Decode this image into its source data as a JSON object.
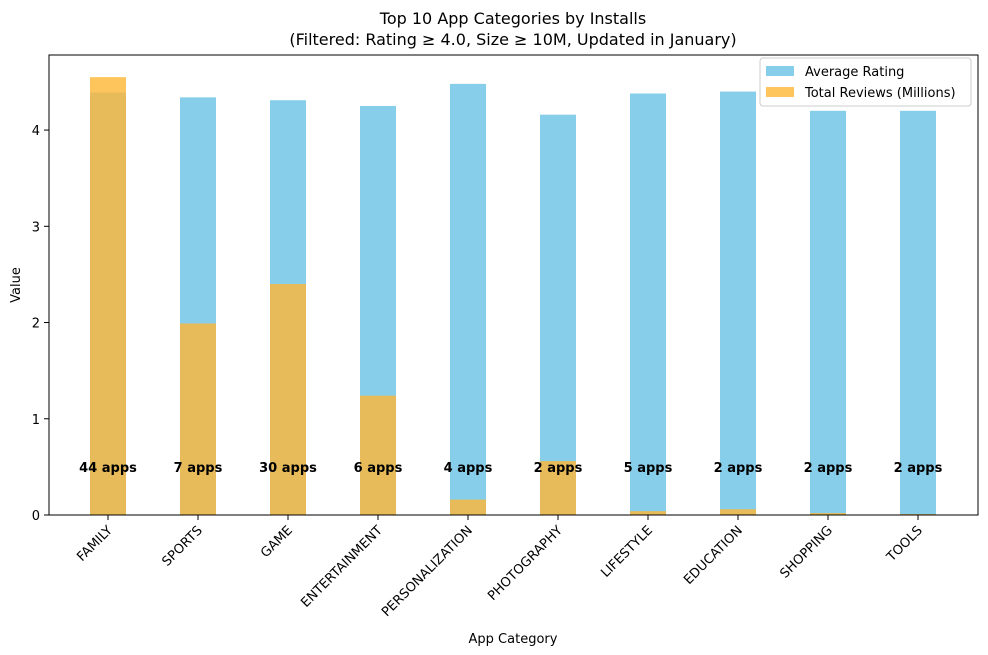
{
  "chart_data": {
    "type": "bar",
    "title": "Top 10 App Categories by Installs",
    "subtitle": "(Filtered: Rating ≥ 4.0, Size ≥ 10M, Updated in January)",
    "xlabel": "App Category",
    "ylabel": "Value",
    "ylim": [
      0,
      4.78
    ],
    "yticks": [
      0,
      1,
      2,
      3,
      4
    ],
    "grid": false,
    "legend_position": "top-right",
    "categories": [
      "FAMILY",
      "SPORTS",
      "GAME",
      "ENTERTAINMENT",
      "PERSONALIZATION",
      "PHOTOGRAPHY",
      "LIFESTYLE",
      "EDUCATION",
      "SHOPPING",
      "TOOLS"
    ],
    "series": [
      {
        "name": "Average Rating",
        "color": "#87ceeb",
        "values": [
          4.39,
          4.34,
          4.31,
          4.25,
          4.48,
          4.16,
          4.38,
          4.4,
          4.2,
          4.2
        ]
      },
      {
        "name": "Total Reviews (Millions)",
        "color": "#ffb734",
        "values": [
          4.55,
          1.99,
          2.4,
          1.24,
          0.16,
          0.56,
          0.04,
          0.06,
          0.02,
          0.01
        ]
      }
    ],
    "count_labels": [
      "44 apps",
      "7 apps",
      "30 apps",
      "6 apps",
      "4 apps",
      "2 apps",
      "5 apps",
      "2 apps",
      "2 apps",
      "2 apps"
    ],
    "count_label_value": 0.5
  }
}
